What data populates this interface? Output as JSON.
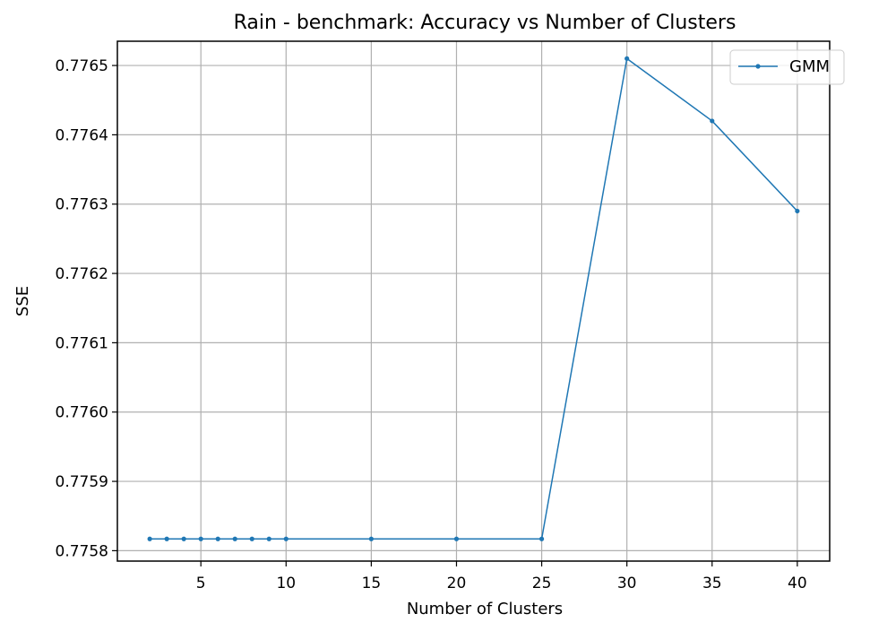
{
  "chart_data": {
    "type": "line",
    "title": "Rain - benchmark: Accuracy vs Number of Clusters",
    "xlabel": "Number of Clusters",
    "ylabel": "SSE",
    "xlim": [
      0.1,
      41.9
    ],
    "ylim": [
      0.775785,
      0.776535
    ],
    "xticks": [
      5,
      10,
      15,
      20,
      25,
      30,
      35,
      40
    ],
    "yticks": [
      0.7758,
      0.7759,
      0.776,
      0.7761,
      0.7762,
      0.7763,
      0.7764,
      0.7765
    ],
    "ytick_labels": [
      "0.7758",
      "0.7759",
      "0.7760",
      "0.7761",
      "0.7762",
      "0.7763",
      "0.7764",
      "0.7765"
    ],
    "grid": true,
    "legend_position": "top-right",
    "series": [
      {
        "name": "GMM",
        "color": "#1f77b4",
        "marker": "point",
        "x": [
          2,
          3,
          4,
          5,
          6,
          7,
          8,
          9,
          10,
          15,
          20,
          25,
          30,
          35,
          40
        ],
        "y": [
          0.775817,
          0.775817,
          0.775817,
          0.775817,
          0.775817,
          0.775817,
          0.775817,
          0.775817,
          0.775817,
          0.775817,
          0.775817,
          0.775817,
          0.77651,
          0.77642,
          0.77629
        ]
      }
    ]
  }
}
